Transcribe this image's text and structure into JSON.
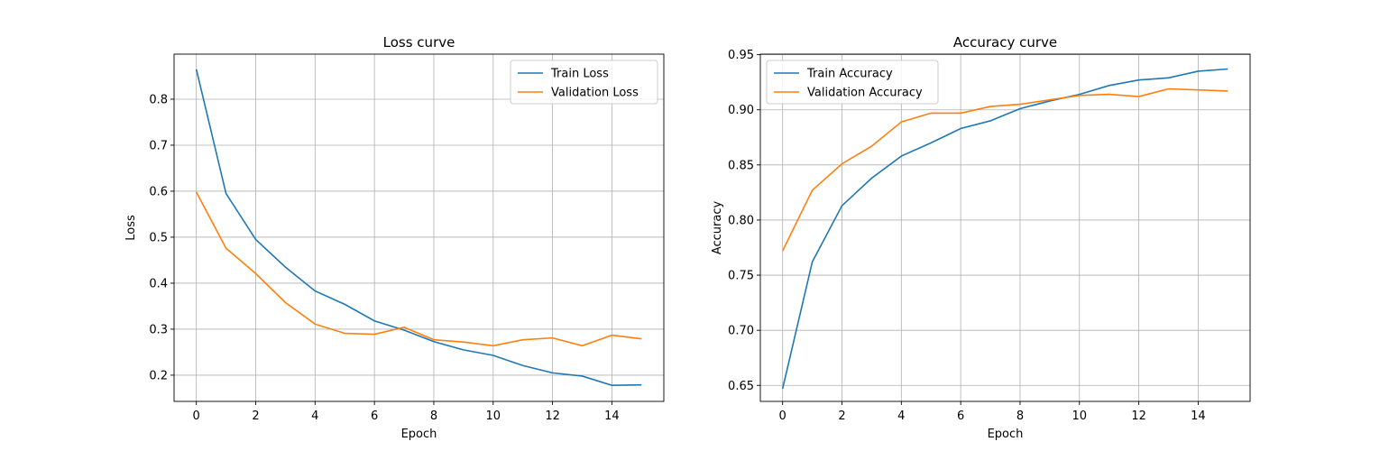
{
  "chart_data": [
    {
      "type": "line",
      "title": "Loss curve",
      "xlabel": "Epoch",
      "ylabel": "Loss",
      "xlim": [
        -0.75,
        15.75
      ],
      "ylim": [
        0.143,
        0.898
      ],
      "xticks": [
        0,
        2,
        4,
        6,
        8,
        10,
        12,
        14
      ],
      "yticks": [
        0.2,
        0.3,
        0.4,
        0.5,
        0.6,
        0.7,
        0.8
      ],
      "grid": true,
      "legend_position": "top-right",
      "x": [
        0,
        1,
        2,
        3,
        4,
        5,
        6,
        7,
        8,
        9,
        10,
        11,
        12,
        13,
        14,
        15
      ],
      "series": [
        {
          "name": "Train Loss",
          "color": "#1f77b4",
          "values": [
            0.865,
            0.595,
            0.495,
            0.435,
            0.383,
            0.354,
            0.318,
            0.298,
            0.273,
            0.255,
            0.243,
            0.221,
            0.205,
            0.198,
            0.178,
            0.179
          ]
        },
        {
          "name": "Validation Loss",
          "color": "#ff7f0e",
          "values": [
            0.598,
            0.476,
            0.421,
            0.358,
            0.311,
            0.291,
            0.289,
            0.304,
            0.277,
            0.272,
            0.264,
            0.277,
            0.281,
            0.264,
            0.287,
            0.279
          ]
        }
      ]
    },
    {
      "type": "line",
      "title": "Accuracy curve",
      "xlabel": "Epoch",
      "ylabel": "Accuracy",
      "xlim": [
        -0.75,
        15.75
      ],
      "ylim": [
        0.6355,
        0.9505
      ],
      "xticks": [
        0,
        2,
        4,
        6,
        8,
        10,
        12,
        14
      ],
      "yticks": [
        0.65,
        0.7,
        0.75,
        0.8,
        0.85,
        0.9,
        0.95
      ],
      "grid": true,
      "legend_position": "top-left",
      "x": [
        0,
        1,
        2,
        3,
        4,
        5,
        6,
        7,
        8,
        9,
        10,
        11,
        12,
        13,
        14,
        15
      ],
      "series": [
        {
          "name": "Train Accuracy",
          "color": "#1f77b4",
          "values": [
            0.647,
            0.762,
            0.813,
            0.838,
            0.858,
            0.87,
            0.883,
            0.89,
            0.901,
            0.908,
            0.914,
            0.922,
            0.927,
            0.929,
            0.935,
            0.937
          ]
        },
        {
          "name": "Validation Accuracy",
          "color": "#ff7f0e",
          "values": [
            0.772,
            0.827,
            0.851,
            0.867,
            0.889,
            0.897,
            0.897,
            0.903,
            0.905,
            0.909,
            0.913,
            0.914,
            0.912,
            0.919,
            0.918,
            0.917
          ]
        }
      ]
    }
  ]
}
